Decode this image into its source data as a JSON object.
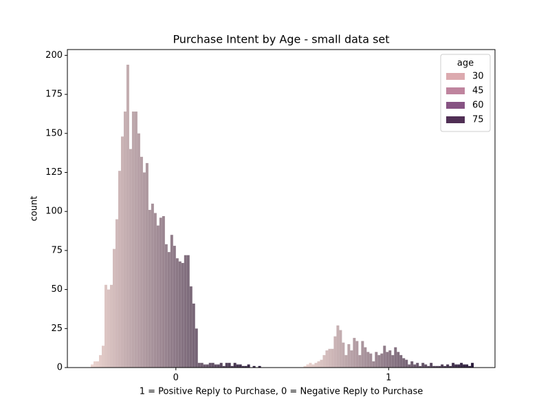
{
  "chart_data": {
    "type": "bar",
    "title": "Purchase Intent by Age - small data set",
    "xlabel": "1 = Positive Reply to Purchase, 0 = Negative Reply to Purchase",
    "ylabel": "count",
    "categories": [
      "0",
      "1"
    ],
    "values": [
      [
        2,
        4,
        4,
        8,
        14,
        53,
        50,
        53,
        76,
        95,
        126,
        148,
        164,
        194,
        140,
        164,
        164,
        150,
        135,
        125,
        131,
        101,
        105,
        99,
        91,
        96,
        97,
        79,
        74,
        85,
        78,
        70,
        68,
        67,
        72,
        72,
        52,
        41,
        25,
        3,
        3,
        2,
        2,
        3,
        3,
        2,
        2,
        3,
        1,
        3,
        3,
        1,
        3,
        2,
        2,
        1,
        1,
        2,
        0,
        1,
        0,
        1
      ],
      [
        1,
        2,
        3,
        2,
        3,
        4,
        5,
        8,
        11,
        12,
        12,
        20,
        27,
        24,
        16,
        8,
        15,
        11,
        19,
        17,
        8,
        17,
        13,
        10,
        9,
        4,
        10,
        8,
        9,
        14,
        10,
        11,
        8,
        13,
        10,
        8,
        6,
        5,
        2,
        4,
        2,
        3,
        1,
        3,
        2,
        1,
        3,
        1,
        1,
        1,
        2,
        1,
        2,
        1,
        3,
        2,
        2,
        3,
        2,
        2,
        1,
        3
      ]
    ],
    "palette": [
      "#ecd4cf",
      "#2d1e3e"
    ],
    "xlim": [
      -0.51,
      1.5
    ],
    "ylim": [
      0,
      203.7
    ],
    "yticks": [
      0,
      25,
      50,
      75,
      100,
      125,
      150,
      175,
      200
    ],
    "legend": {
      "title": "age",
      "location": "upper right",
      "entries": [
        {
          "label": 30,
          "color": "#dcaaaf"
        },
        {
          "label": 45,
          "color": "#bf849e"
        },
        {
          "label": 60,
          "color": "#875383"
        },
        {
          "label": 75,
          "color": "#502f55"
        }
      ]
    }
  }
}
